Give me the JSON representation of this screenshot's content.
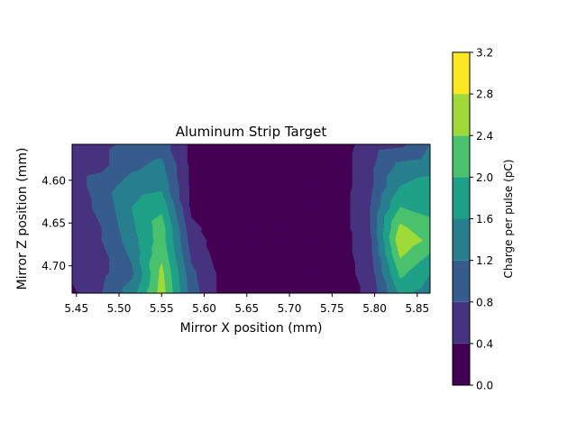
{
  "chart_data": {
    "type": "heatmap",
    "style": "filled-contour",
    "title": "Aluminum Strip Target",
    "xlabel": "Mirror X position (mm)",
    "ylabel": "Mirror Z position (mm)",
    "xlim": [
      5.445,
      5.865
    ],
    "ylim": [
      4.732,
      4.558
    ],
    "y_axis_inverted": true,
    "xticks": [
      "5.45",
      "5.50",
      "5.55",
      "5.60",
      "5.65",
      "5.70",
      "5.75",
      "5.80",
      "5.85"
    ],
    "xtick_values": [
      5.45,
      5.5,
      5.55,
      5.6,
      5.65,
      5.7,
      5.75,
      5.8,
      5.85
    ],
    "yticks": [
      "4.60",
      "4.65",
      "4.70"
    ],
    "ytick_values": [
      4.6,
      4.65,
      4.7
    ],
    "colorbar": {
      "label": "Charge per pulse (pC)",
      "levels": [
        0.0,
        0.4,
        0.8,
        1.2,
        1.6,
        2.0,
        2.4,
        2.8,
        3.2
      ],
      "tick_labels": [
        "0.0",
        "0.4",
        "0.8",
        "1.2",
        "1.6",
        "2.0",
        "2.4",
        "2.8",
        "3.2"
      ],
      "colormap": "viridis",
      "band_colors": [
        "#440154",
        "#46327e",
        "#365c8d",
        "#277f8e",
        "#1fa187",
        "#4ac16d",
        "#a0da39",
        "#fde725"
      ]
    },
    "x": [
      5.445,
      5.48,
      5.515,
      5.55,
      5.585,
      5.62,
      5.655,
      5.69,
      5.725,
      5.76,
      5.795,
      5.83,
      5.865
    ],
    "y": [
      4.558,
      4.5825,
      4.607,
      4.6315,
      4.656,
      4.6705,
      4.685,
      4.7085,
      4.732
    ],
    "z": [
      [
        0.6,
        0.7,
        0.9,
        1.0,
        0.3,
        0.2,
        0.2,
        0.2,
        0.2,
        0.2,
        0.6,
        0.7,
        1.2
      ],
      [
        0.6,
        0.7,
        1.1,
        1.3,
        0.3,
        0.2,
        0.2,
        0.2,
        0.2,
        0.2,
        0.7,
        1.3,
        1.4
      ],
      [
        0.6,
        1.0,
        1.4,
        1.5,
        0.3,
        0.2,
        0.2,
        0.2,
        0.2,
        0.2,
        0.7,
        1.6,
        1.8
      ],
      [
        0.6,
        0.9,
        1.6,
        1.9,
        0.3,
        0.2,
        0.2,
        0.2,
        0.2,
        0.2,
        0.8,
        2.0,
        1.9
      ],
      [
        0.6,
        0.8,
        1.5,
        2.2,
        0.5,
        0.2,
        0.2,
        0.2,
        0.2,
        0.2,
        0.8,
        2.5,
        2.1
      ],
      [
        0.5,
        0.8,
        1.4,
        2.2,
        0.6,
        0.2,
        0.2,
        0.2,
        0.2,
        0.2,
        0.7,
        2.7,
        2.3
      ],
      [
        0.5,
        0.7,
        1.3,
        2.3,
        0.7,
        0.2,
        0.2,
        0.2,
        0.2,
        0.2,
        0.7,
        2.5,
        2.0
      ],
      [
        0.5,
        0.7,
        1.1,
        2.5,
        0.9,
        0.3,
        0.2,
        0.2,
        0.2,
        0.2,
        0.6,
        2.1,
        1.6
      ],
      [
        0.3,
        0.8,
        1.4,
        2.6,
        1.0,
        0.3,
        0.2,
        0.2,
        0.2,
        0.2,
        0.5,
        1.7,
        1.4
      ]
    ]
  }
}
